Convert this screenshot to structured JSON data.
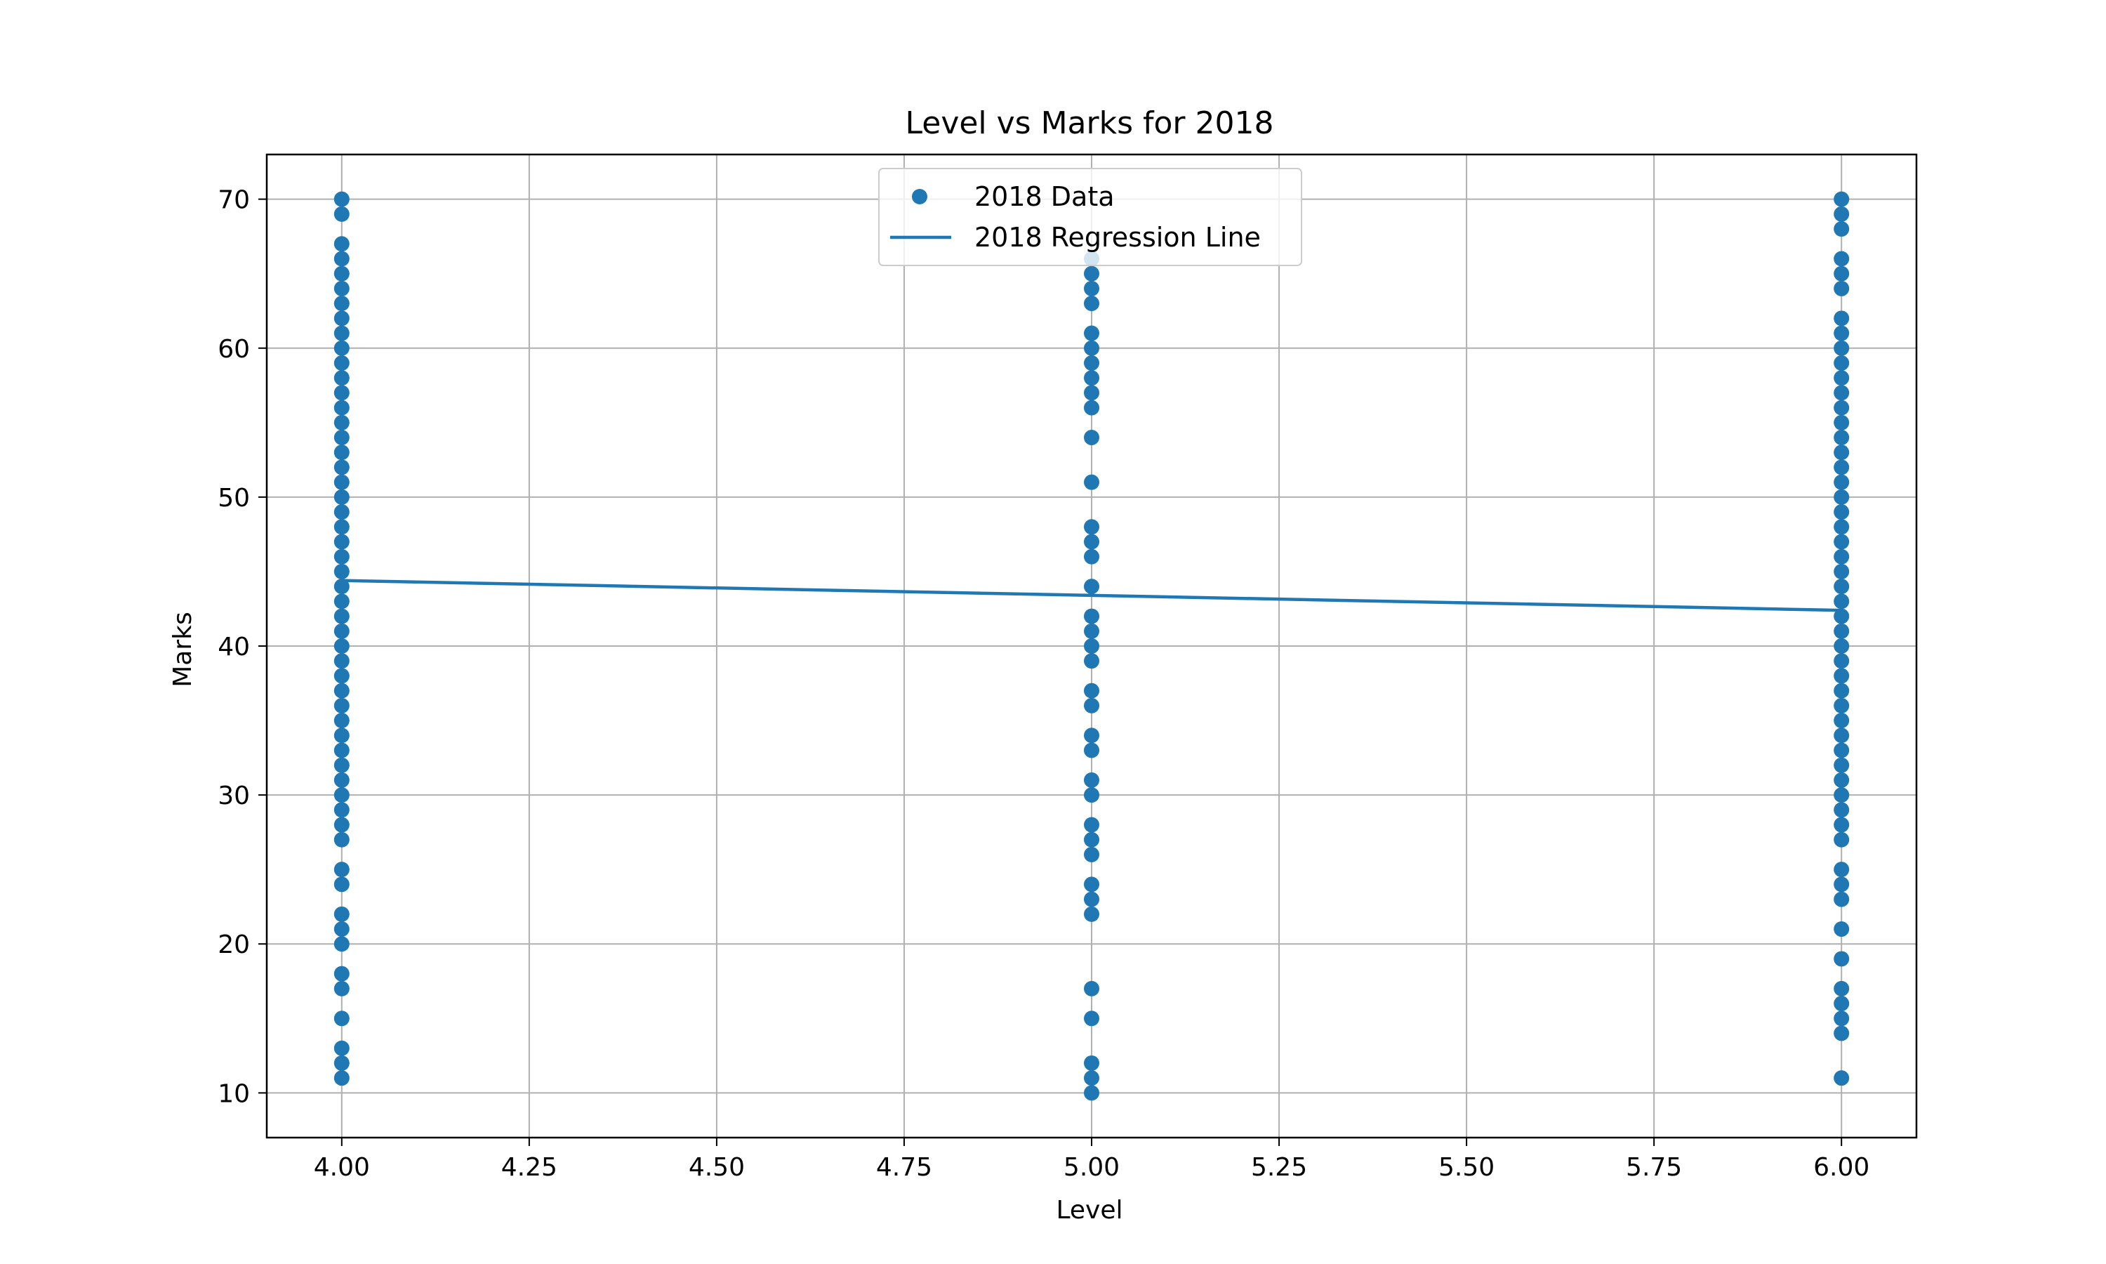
{
  "chart_data": {
    "type": "scatter",
    "title": "Level vs Marks for 2018",
    "xlabel": "Level",
    "ylabel": "Marks",
    "xlim": [
      3.9,
      6.1
    ],
    "ylim": [
      7.0,
      73.0
    ],
    "x_ticks": [
      "4.00",
      "4.25",
      "4.50",
      "4.75",
      "5.00",
      "5.25",
      "5.50",
      "5.75",
      "6.00"
    ],
    "y_ticks": [
      "10",
      "20",
      "30",
      "40",
      "50",
      "60",
      "70"
    ],
    "grid": true,
    "legend_position": "top-center",
    "series": [
      {
        "name": "2018 Data",
        "kind": "scatter",
        "color": "#1f77b4",
        "points": [
          {
            "x": 4,
            "y": 70
          },
          {
            "x": 4,
            "y": 69
          },
          {
            "x": 4,
            "y": 67
          },
          {
            "x": 4,
            "y": 66
          },
          {
            "x": 4,
            "y": 65
          },
          {
            "x": 4,
            "y": 64
          },
          {
            "x": 4,
            "y": 63
          },
          {
            "x": 4,
            "y": 62
          },
          {
            "x": 4,
            "y": 61
          },
          {
            "x": 4,
            "y": 60
          },
          {
            "x": 4,
            "y": 59
          },
          {
            "x": 4,
            "y": 58
          },
          {
            "x": 4,
            "y": 57
          },
          {
            "x": 4,
            "y": 56
          },
          {
            "x": 4,
            "y": 55
          },
          {
            "x": 4,
            "y": 54
          },
          {
            "x": 4,
            "y": 53
          },
          {
            "x": 4,
            "y": 52
          },
          {
            "x": 4,
            "y": 51
          },
          {
            "x": 4,
            "y": 50
          },
          {
            "x": 4,
            "y": 49
          },
          {
            "x": 4,
            "y": 48
          },
          {
            "x": 4,
            "y": 47
          },
          {
            "x": 4,
            "y": 46
          },
          {
            "x": 4,
            "y": 45
          },
          {
            "x": 4,
            "y": 44
          },
          {
            "x": 4,
            "y": 43
          },
          {
            "x": 4,
            "y": 42
          },
          {
            "x": 4,
            "y": 41
          },
          {
            "x": 4,
            "y": 40
          },
          {
            "x": 4,
            "y": 39
          },
          {
            "x": 4,
            "y": 38
          },
          {
            "x": 4,
            "y": 37
          },
          {
            "x": 4,
            "y": 36
          },
          {
            "x": 4,
            "y": 35
          },
          {
            "x": 4,
            "y": 34
          },
          {
            "x": 4,
            "y": 33
          },
          {
            "x": 4,
            "y": 32
          },
          {
            "x": 4,
            "y": 31
          },
          {
            "x": 4,
            "y": 30
          },
          {
            "x": 4,
            "y": 29
          },
          {
            "x": 4,
            "y": 28
          },
          {
            "x": 4,
            "y": 27
          },
          {
            "x": 4,
            "y": 25
          },
          {
            "x": 4,
            "y": 24
          },
          {
            "x": 4,
            "y": 22
          },
          {
            "x": 4,
            "y": 21
          },
          {
            "x": 4,
            "y": 20
          },
          {
            "x": 4,
            "y": 18
          },
          {
            "x": 4,
            "y": 17
          },
          {
            "x": 4,
            "y": 15
          },
          {
            "x": 4,
            "y": 13
          },
          {
            "x": 4,
            "y": 12
          },
          {
            "x": 4,
            "y": 11
          },
          {
            "x": 5,
            "y": 66
          },
          {
            "x": 5,
            "y": 65
          },
          {
            "x": 5,
            "y": 64
          },
          {
            "x": 5,
            "y": 63
          },
          {
            "x": 5,
            "y": 61
          },
          {
            "x": 5,
            "y": 60
          },
          {
            "x": 5,
            "y": 59
          },
          {
            "x": 5,
            "y": 58
          },
          {
            "x": 5,
            "y": 57
          },
          {
            "x": 5,
            "y": 56
          },
          {
            "x": 5,
            "y": 54
          },
          {
            "x": 5,
            "y": 51
          },
          {
            "x": 5,
            "y": 48
          },
          {
            "x": 5,
            "y": 47
          },
          {
            "x": 5,
            "y": 46
          },
          {
            "x": 5,
            "y": 44
          },
          {
            "x": 5,
            "y": 42
          },
          {
            "x": 5,
            "y": 41
          },
          {
            "x": 5,
            "y": 40
          },
          {
            "x": 5,
            "y": 39
          },
          {
            "x": 5,
            "y": 37
          },
          {
            "x": 5,
            "y": 36
          },
          {
            "x": 5,
            "y": 34
          },
          {
            "x": 5,
            "y": 33
          },
          {
            "x": 5,
            "y": 31
          },
          {
            "x": 5,
            "y": 30
          },
          {
            "x": 5,
            "y": 28
          },
          {
            "x": 5,
            "y": 27
          },
          {
            "x": 5,
            "y": 26
          },
          {
            "x": 5,
            "y": 24
          },
          {
            "x": 5,
            "y": 23
          },
          {
            "x": 5,
            "y": 22
          },
          {
            "x": 5,
            "y": 17
          },
          {
            "x": 5,
            "y": 15
          },
          {
            "x": 5,
            "y": 12
          },
          {
            "x": 5,
            "y": 11
          },
          {
            "x": 5,
            "y": 10
          },
          {
            "x": 6,
            "y": 70
          },
          {
            "x": 6,
            "y": 69
          },
          {
            "x": 6,
            "y": 68
          },
          {
            "x": 6,
            "y": 66
          },
          {
            "x": 6,
            "y": 65
          },
          {
            "x": 6,
            "y": 64
          },
          {
            "x": 6,
            "y": 62
          },
          {
            "x": 6,
            "y": 61
          },
          {
            "x": 6,
            "y": 60
          },
          {
            "x": 6,
            "y": 59
          },
          {
            "x": 6,
            "y": 58
          },
          {
            "x": 6,
            "y": 57
          },
          {
            "x": 6,
            "y": 56
          },
          {
            "x": 6,
            "y": 55
          },
          {
            "x": 6,
            "y": 54
          },
          {
            "x": 6,
            "y": 53
          },
          {
            "x": 6,
            "y": 52
          },
          {
            "x": 6,
            "y": 51
          },
          {
            "x": 6,
            "y": 50
          },
          {
            "x": 6,
            "y": 49
          },
          {
            "x": 6,
            "y": 48
          },
          {
            "x": 6,
            "y": 47
          },
          {
            "x": 6,
            "y": 46
          },
          {
            "x": 6,
            "y": 45
          },
          {
            "x": 6,
            "y": 44
          },
          {
            "x": 6,
            "y": 43
          },
          {
            "x": 6,
            "y": 42
          },
          {
            "x": 6,
            "y": 41
          },
          {
            "x": 6,
            "y": 40
          },
          {
            "x": 6,
            "y": 39
          },
          {
            "x": 6,
            "y": 38
          },
          {
            "x": 6,
            "y": 37
          },
          {
            "x": 6,
            "y": 36
          },
          {
            "x": 6,
            "y": 35
          },
          {
            "x": 6,
            "y": 34
          },
          {
            "x": 6,
            "y": 33
          },
          {
            "x": 6,
            "y": 32
          },
          {
            "x": 6,
            "y": 31
          },
          {
            "x": 6,
            "y": 30
          },
          {
            "x": 6,
            "y": 29
          },
          {
            "x": 6,
            "y": 28
          },
          {
            "x": 6,
            "y": 27
          },
          {
            "x": 6,
            "y": 25
          },
          {
            "x": 6,
            "y": 24
          },
          {
            "x": 6,
            "y": 23
          },
          {
            "x": 6,
            "y": 21
          },
          {
            "x": 6,
            "y": 19
          },
          {
            "x": 6,
            "y": 17
          },
          {
            "x": 6,
            "y": 16
          },
          {
            "x": 6,
            "y": 15
          },
          {
            "x": 6,
            "y": 14
          },
          {
            "x": 6,
            "y": 11
          }
        ]
      },
      {
        "name": "2018 Regression Line",
        "kind": "line",
        "color": "#1f77b4",
        "points": [
          {
            "x": 4,
            "y": 44.4
          },
          {
            "x": 6,
            "y": 42.4
          }
        ]
      }
    ]
  }
}
